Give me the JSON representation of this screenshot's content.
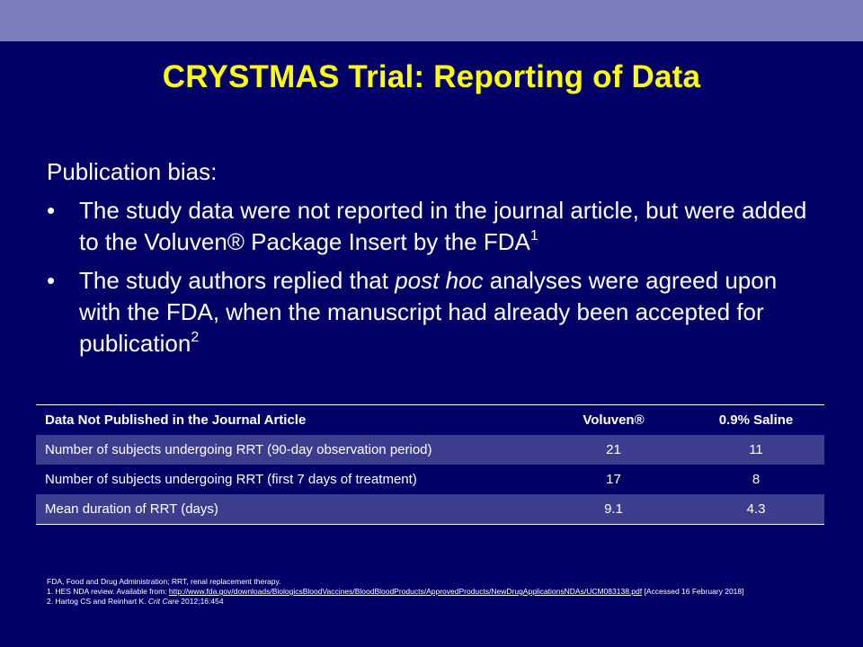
{
  "title": "CRYSTMAS Trial: Reporting of Data",
  "content": {
    "lead": "Publication bias:",
    "bullet_glyph": "•",
    "bullet1": {
      "text": "The study data were not reported in the journal article, but were added to the Voluven® Package Insert by the FDA",
      "ref": "1"
    },
    "bullet2": {
      "pre": "The study authors replied that ",
      "italic": "post hoc",
      "post": " analyses were agreed upon with the FDA, when the manuscript had already been accepted for publication",
      "ref": "2"
    }
  },
  "table": {
    "headers": [
      "Data Not Published  in the Journal  Article",
      "Voluven®",
      "0.9% Saline"
    ],
    "rows": [
      [
        "Number of subjects undergoing RRT (90-day observation period)",
        "21",
        "11"
      ],
      [
        "Number of subjects undergoing RRT (first 7 days of treatment)",
        "17",
        "8"
      ],
      [
        "Mean duration of RRT (days)",
        "9.1",
        "4.3"
      ]
    ]
  },
  "footnotes": {
    "abbrev": "FDA, Food and Drug Administration; RRT, renal replacement therapy.",
    "ref1_pre": "1. HES NDA review. Available from: ",
    "ref1_link": "http://www.fda.gov/downloads/BiologicsBloodVaccines/BloodBloodProducts/ApprovedProducts/NewDrugApplicationsNDAs/UCM083138.pdf",
    "ref1_post": " [Accessed 16 February 2018]",
    "ref2_pre": "2. Hartog CS and Reinhart K. ",
    "ref2_journal": "Crit Care",
    "ref2_post": " 2012;16:454"
  },
  "colors": {
    "background": "#000066",
    "top_band": "#7b7dbd",
    "title": "#ffff00",
    "row_shade": "#3d3d8f"
  }
}
